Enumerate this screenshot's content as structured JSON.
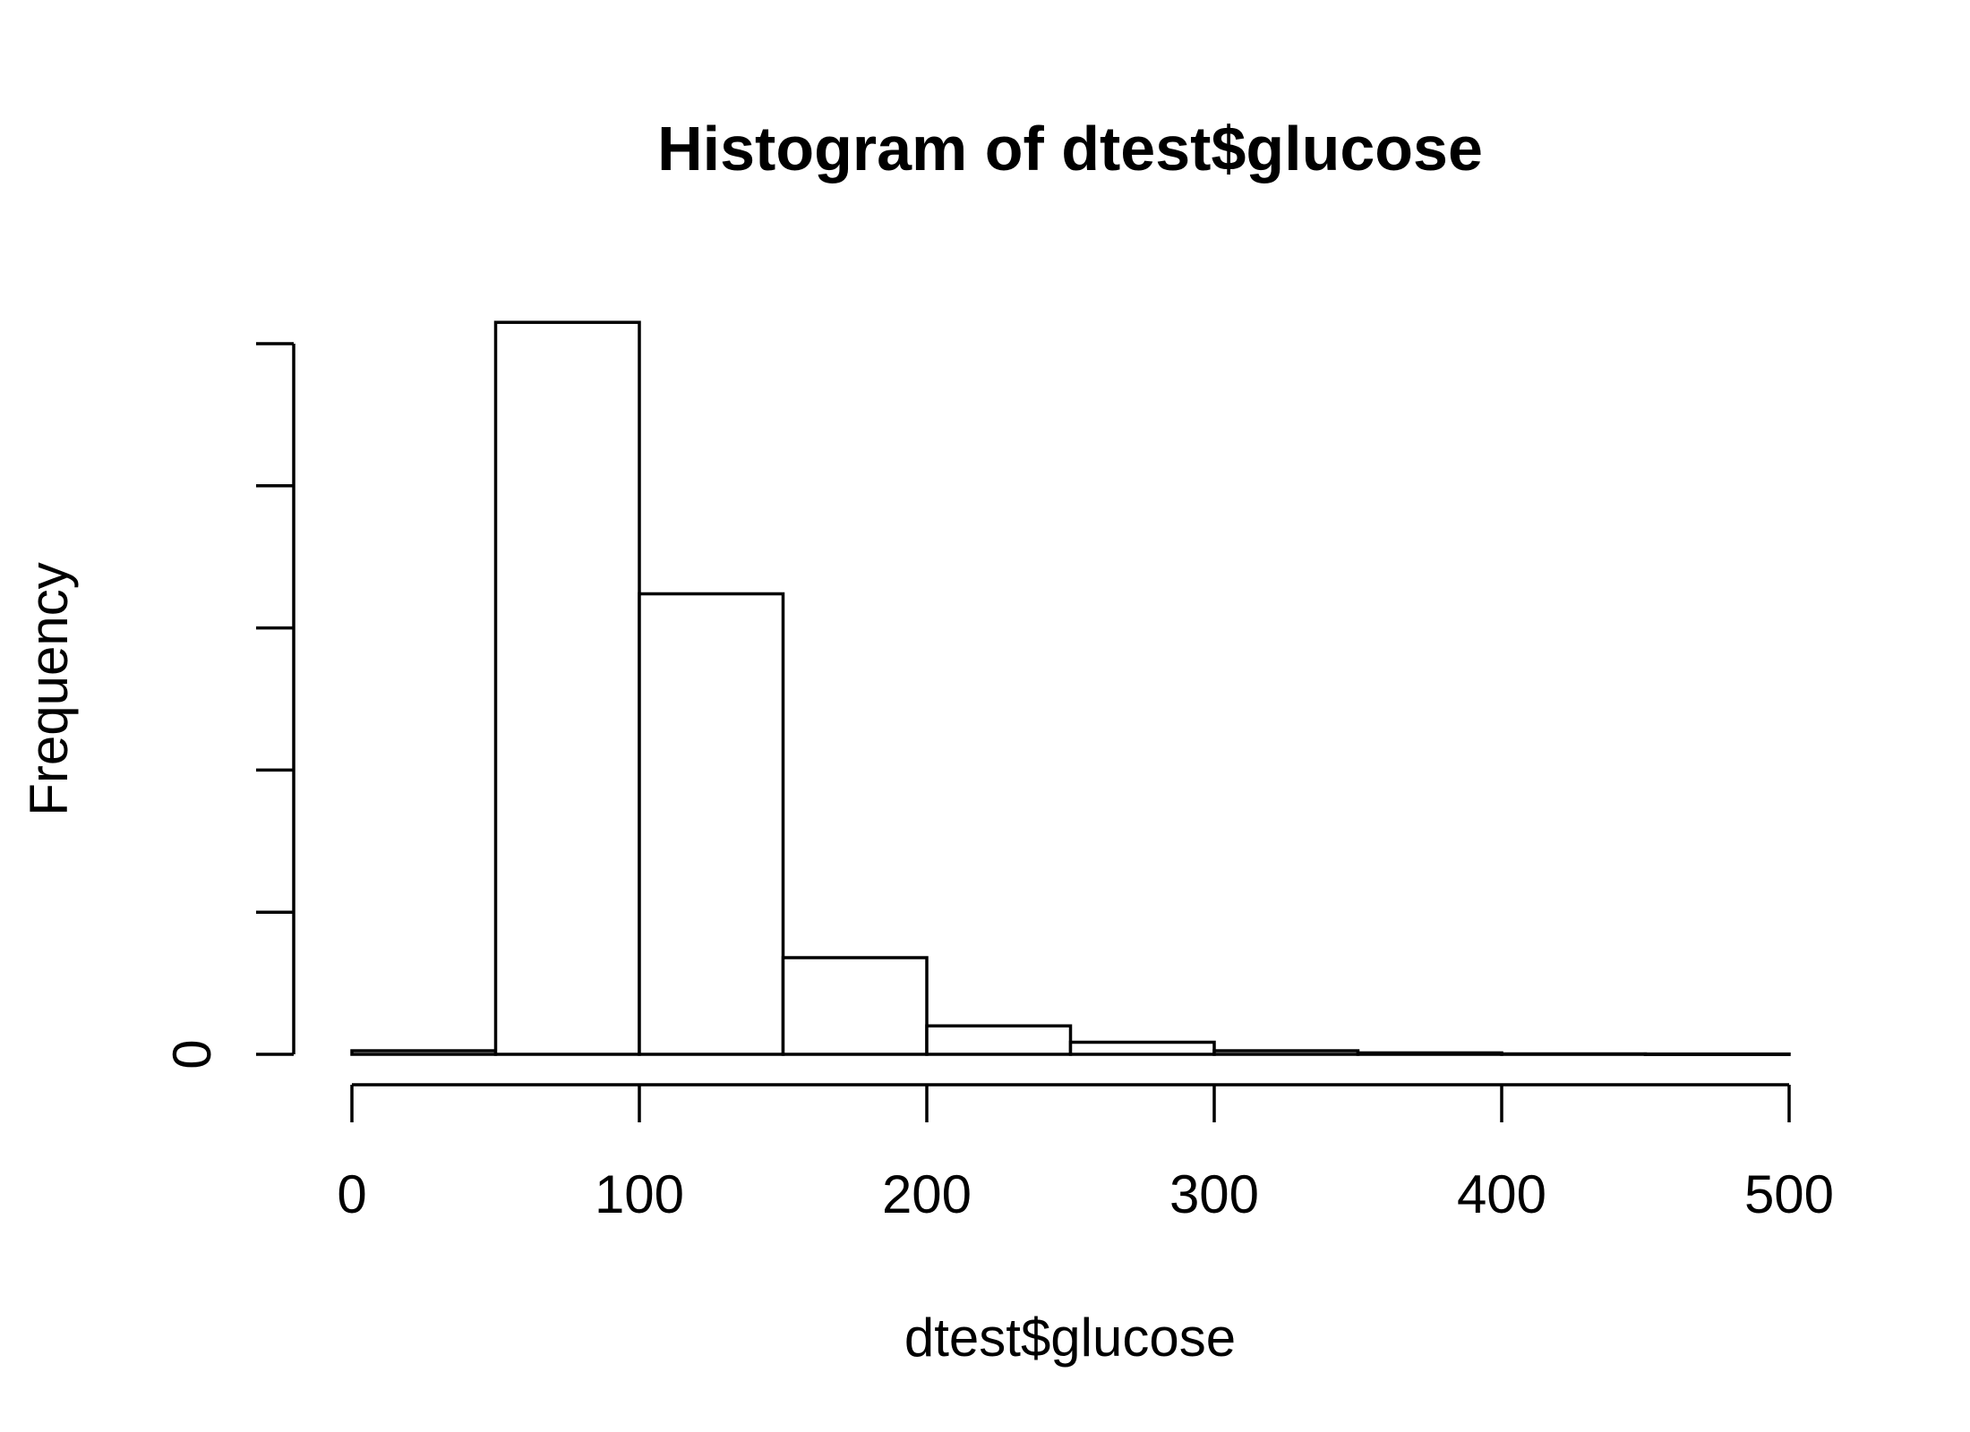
{
  "chart_data": {
    "type": "bar",
    "title": "Histogram of dtest$glucose",
    "xlabel": "dtest$glucose",
    "ylabel": "Frequency",
    "bins": [
      {
        "from": 0,
        "to": 50,
        "count": 25
      },
      {
        "from": 50,
        "to": 100,
        "count": 5150
      },
      {
        "from": 100,
        "to": 150,
        "count": 3240
      },
      {
        "from": 150,
        "to": 200,
        "count": 680
      },
      {
        "from": 200,
        "to": 250,
        "count": 200
      },
      {
        "from": 250,
        "to": 300,
        "count": 85
      },
      {
        "from": 300,
        "to": 350,
        "count": 25
      },
      {
        "from": 350,
        "to": 400,
        "count": 10
      },
      {
        "from": 400,
        "to": 450,
        "count": 3
      },
      {
        "from": 450,
        "to": 500,
        "count": 2
      }
    ],
    "xlim": [
      0,
      500
    ],
    "ylim": [
      0,
      5000
    ],
    "x_ticks": [
      0,
      100,
      200,
      300,
      400,
      500
    ],
    "y_ticks": [
      0,
      1000,
      2000,
      3000,
      4000,
      5000
    ],
    "y_tick_labels": [
      "0",
      "",
      "",
      "",
      "",
      ""
    ],
    "grid": false,
    "legend": "none"
  }
}
